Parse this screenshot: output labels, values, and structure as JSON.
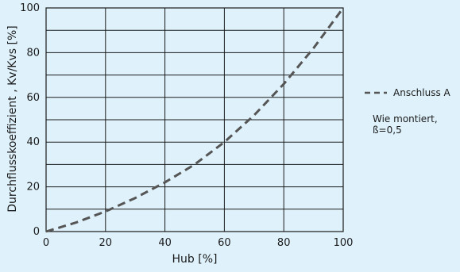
{
  "chart_data": {
    "type": "line",
    "xlabel": "Hub [%]",
    "ylabel": "Durchflusskoeffizient , Kv/Kvs [%]",
    "xlim": [
      0,
      100
    ],
    "ylim": [
      0,
      100
    ],
    "x_ticks": [
      "0",
      "20",
      "40",
      "60",
      "80",
      "100"
    ],
    "y_ticks": [
      "0",
      "20",
      "40",
      "60",
      "80",
      "100"
    ],
    "grid": true,
    "legend_position": "right",
    "series": [
      {
        "name": "Anschluss A",
        "style": "dashed",
        "color": "#555555",
        "x": [
          0,
          10,
          20,
          30,
          40,
          50,
          60,
          70,
          80,
          90,
          100
        ],
        "y": [
          0,
          4,
          9,
          15,
          22,
          30,
          40,
          52,
          66,
          82,
          100
        ]
      }
    ],
    "annotations": [
      "Wie montiert,",
      "ß=0,5"
    ]
  },
  "colors": {
    "background": "#dff2fc",
    "grid": "#1a1a1a",
    "line": "#555555"
  }
}
